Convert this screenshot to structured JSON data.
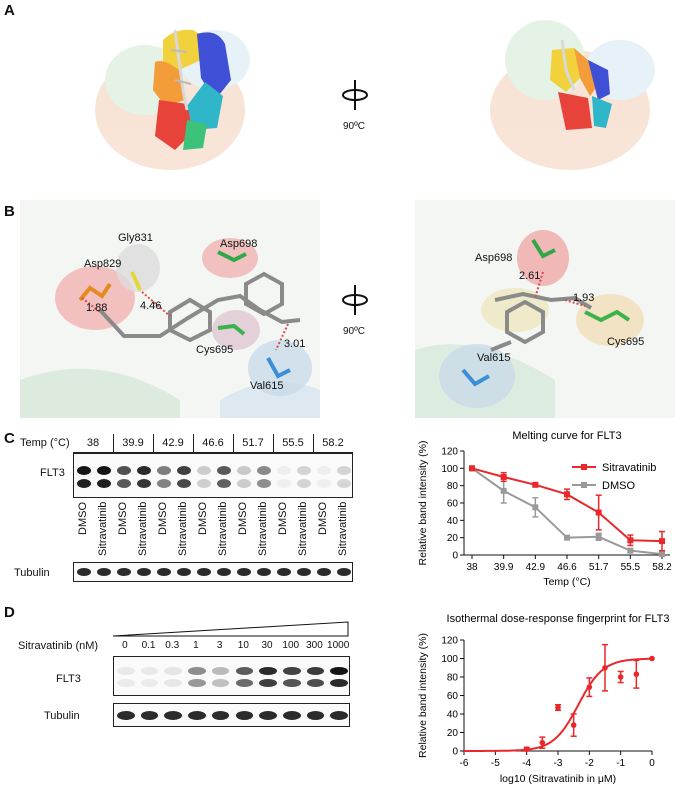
{
  "panels": {
    "a": "A",
    "b": "B",
    "c": "C",
    "d": "D"
  },
  "rotation_label": "90ºC",
  "panel_b": {
    "left_labels": [
      "Asp829",
      "Gly831",
      "Asp698",
      "Cys695",
      "Val615"
    ],
    "left_distances": [
      "1.88",
      "4.46",
      "3.01"
    ],
    "right_labels": [
      "Asp698",
      "Cys695",
      "Val615"
    ],
    "right_distances": [
      "2.61",
      "1.93"
    ]
  },
  "panel_c": {
    "temp_header": "Temp (°C)",
    "temps": [
      "38",
      "39.9",
      "42.9",
      "46.6",
      "51.7",
      "55.5",
      "58.2"
    ],
    "row_flt3": "FLT3",
    "row_tubulin": "Tubulin",
    "lane_dmso": "DMSO",
    "lane_sitra": "Sitravatinib"
  },
  "panel_d": {
    "row_label": "Sitravatinib (nM)",
    "doses": [
      "0",
      "0.1",
      "0.3",
      "1",
      "3",
      "10",
      "30",
      "100",
      "300",
      "1000"
    ],
    "row_flt3": "FLT3",
    "row_tubulin": "Tubulin"
  },
  "chart_data": [
    {
      "type": "line",
      "title": "Melting curve for FLT3",
      "xlabel": "Temp (°C)",
      "ylabel": "Relative band intensity (%)",
      "categories": [
        "38",
        "39.9",
        "42.9",
        "46.6",
        "51.7",
        "55.5",
        "58.2"
      ],
      "ylim": [
        0,
        120
      ],
      "yticks": [
        "0",
        "20",
        "40",
        "60",
        "80",
        "100",
        "120"
      ],
      "legend": "top-right",
      "series": [
        {
          "name": "Sitravatinib",
          "color": "#e8282b",
          "values": [
            100,
            90,
            81,
            70,
            49,
            17,
            16
          ],
          "errors": [
            0,
            5,
            2,
            6,
            20,
            6,
            11
          ]
        },
        {
          "name": "DMSO",
          "color": "#9a9a9a",
          "values": [
            100,
            74,
            55,
            20,
            21,
            5,
            1
          ],
          "errors": [
            0,
            14,
            11,
            2,
            4,
            2,
            1
          ]
        }
      ]
    },
    {
      "type": "scatter",
      "title": "Isothermal dose-response fingerprint for FLT3",
      "xlabel": "log10 (Sitravatinib in μM)",
      "ylabel": "Relative band intensity (%)",
      "xlim": [
        -6,
        0
      ],
      "ylim": [
        0,
        120
      ],
      "xticks": [
        "-6",
        "-5",
        "-4",
        "-3",
        "-2",
        "-1",
        "0"
      ],
      "yticks": [
        "0",
        "20",
        "40",
        "60",
        "80",
        "100",
        "120"
      ],
      "color": "#e8282b",
      "x": [
        -4,
        -3.5,
        -3,
        -2.5,
        -2,
        -1.5,
        -1,
        -0.5,
        0
      ],
      "y": [
        2,
        9,
        47,
        28,
        69,
        90,
        80,
        83,
        100
      ],
      "errors": [
        2,
        6,
        3,
        12,
        10,
        25,
        6,
        15,
        0
      ],
      "fit": {
        "type": "sigmoid",
        "top": 100,
        "bottom": 0,
        "log_ec50": -2.35,
        "hill": 1.1
      }
    }
  ]
}
